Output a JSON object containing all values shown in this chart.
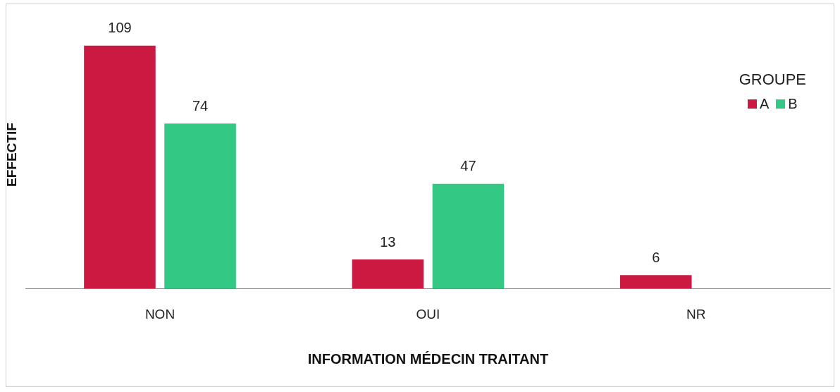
{
  "chart_data": {
    "type": "bar",
    "xlabel": "INFORMATION MÉDECIN TRAITANT",
    "ylabel": "EFFECTIF",
    "legend_title": "GROUPE",
    "legend": "top right",
    "data_labels": true,
    "categories": [
      "NON",
      "OUI",
      "NR"
    ],
    "series": [
      {
        "name": "A",
        "color": "#cc1942",
        "values": [
          109,
          13,
          6
        ]
      },
      {
        "name": "B",
        "color": "#33c884",
        "values": [
          74,
          47,
          null
        ]
      }
    ]
  }
}
